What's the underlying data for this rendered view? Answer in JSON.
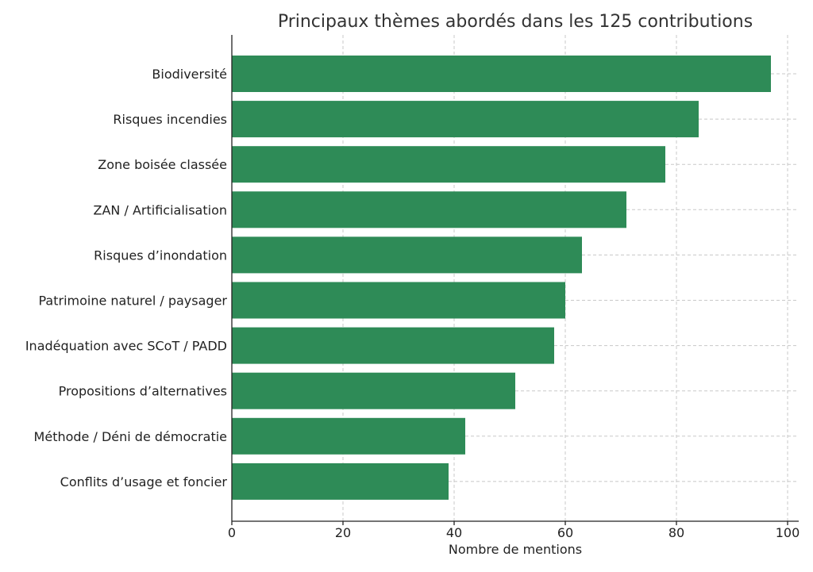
{
  "chart_data": {
    "type": "bar",
    "orientation": "horizontal",
    "title": "Principaux thèmes abordés dans les 125 contributions",
    "xlabel": "Nombre de mentions",
    "ylabel": "",
    "categories": [
      "Biodiversité",
      "Risques incendies",
      "Zone boisée classée",
      "ZAN / Artificialisation",
      "Risques d’inondation",
      "Patrimoine naturel / paysager",
      "Inadéquation avec SCoT / PADD",
      "Propositions d’alternatives",
      "Méthode / Déni de démocratie",
      "Conflits d’usage et foncier"
    ],
    "values": [
      97,
      84,
      78,
      71,
      63,
      60,
      58,
      51,
      42,
      39
    ],
    "xlim": [
      0,
      102
    ],
    "xticks": [
      0,
      20,
      40,
      60,
      80,
      100
    ],
    "grid": true,
    "bar_color": "#2e8b57"
  }
}
